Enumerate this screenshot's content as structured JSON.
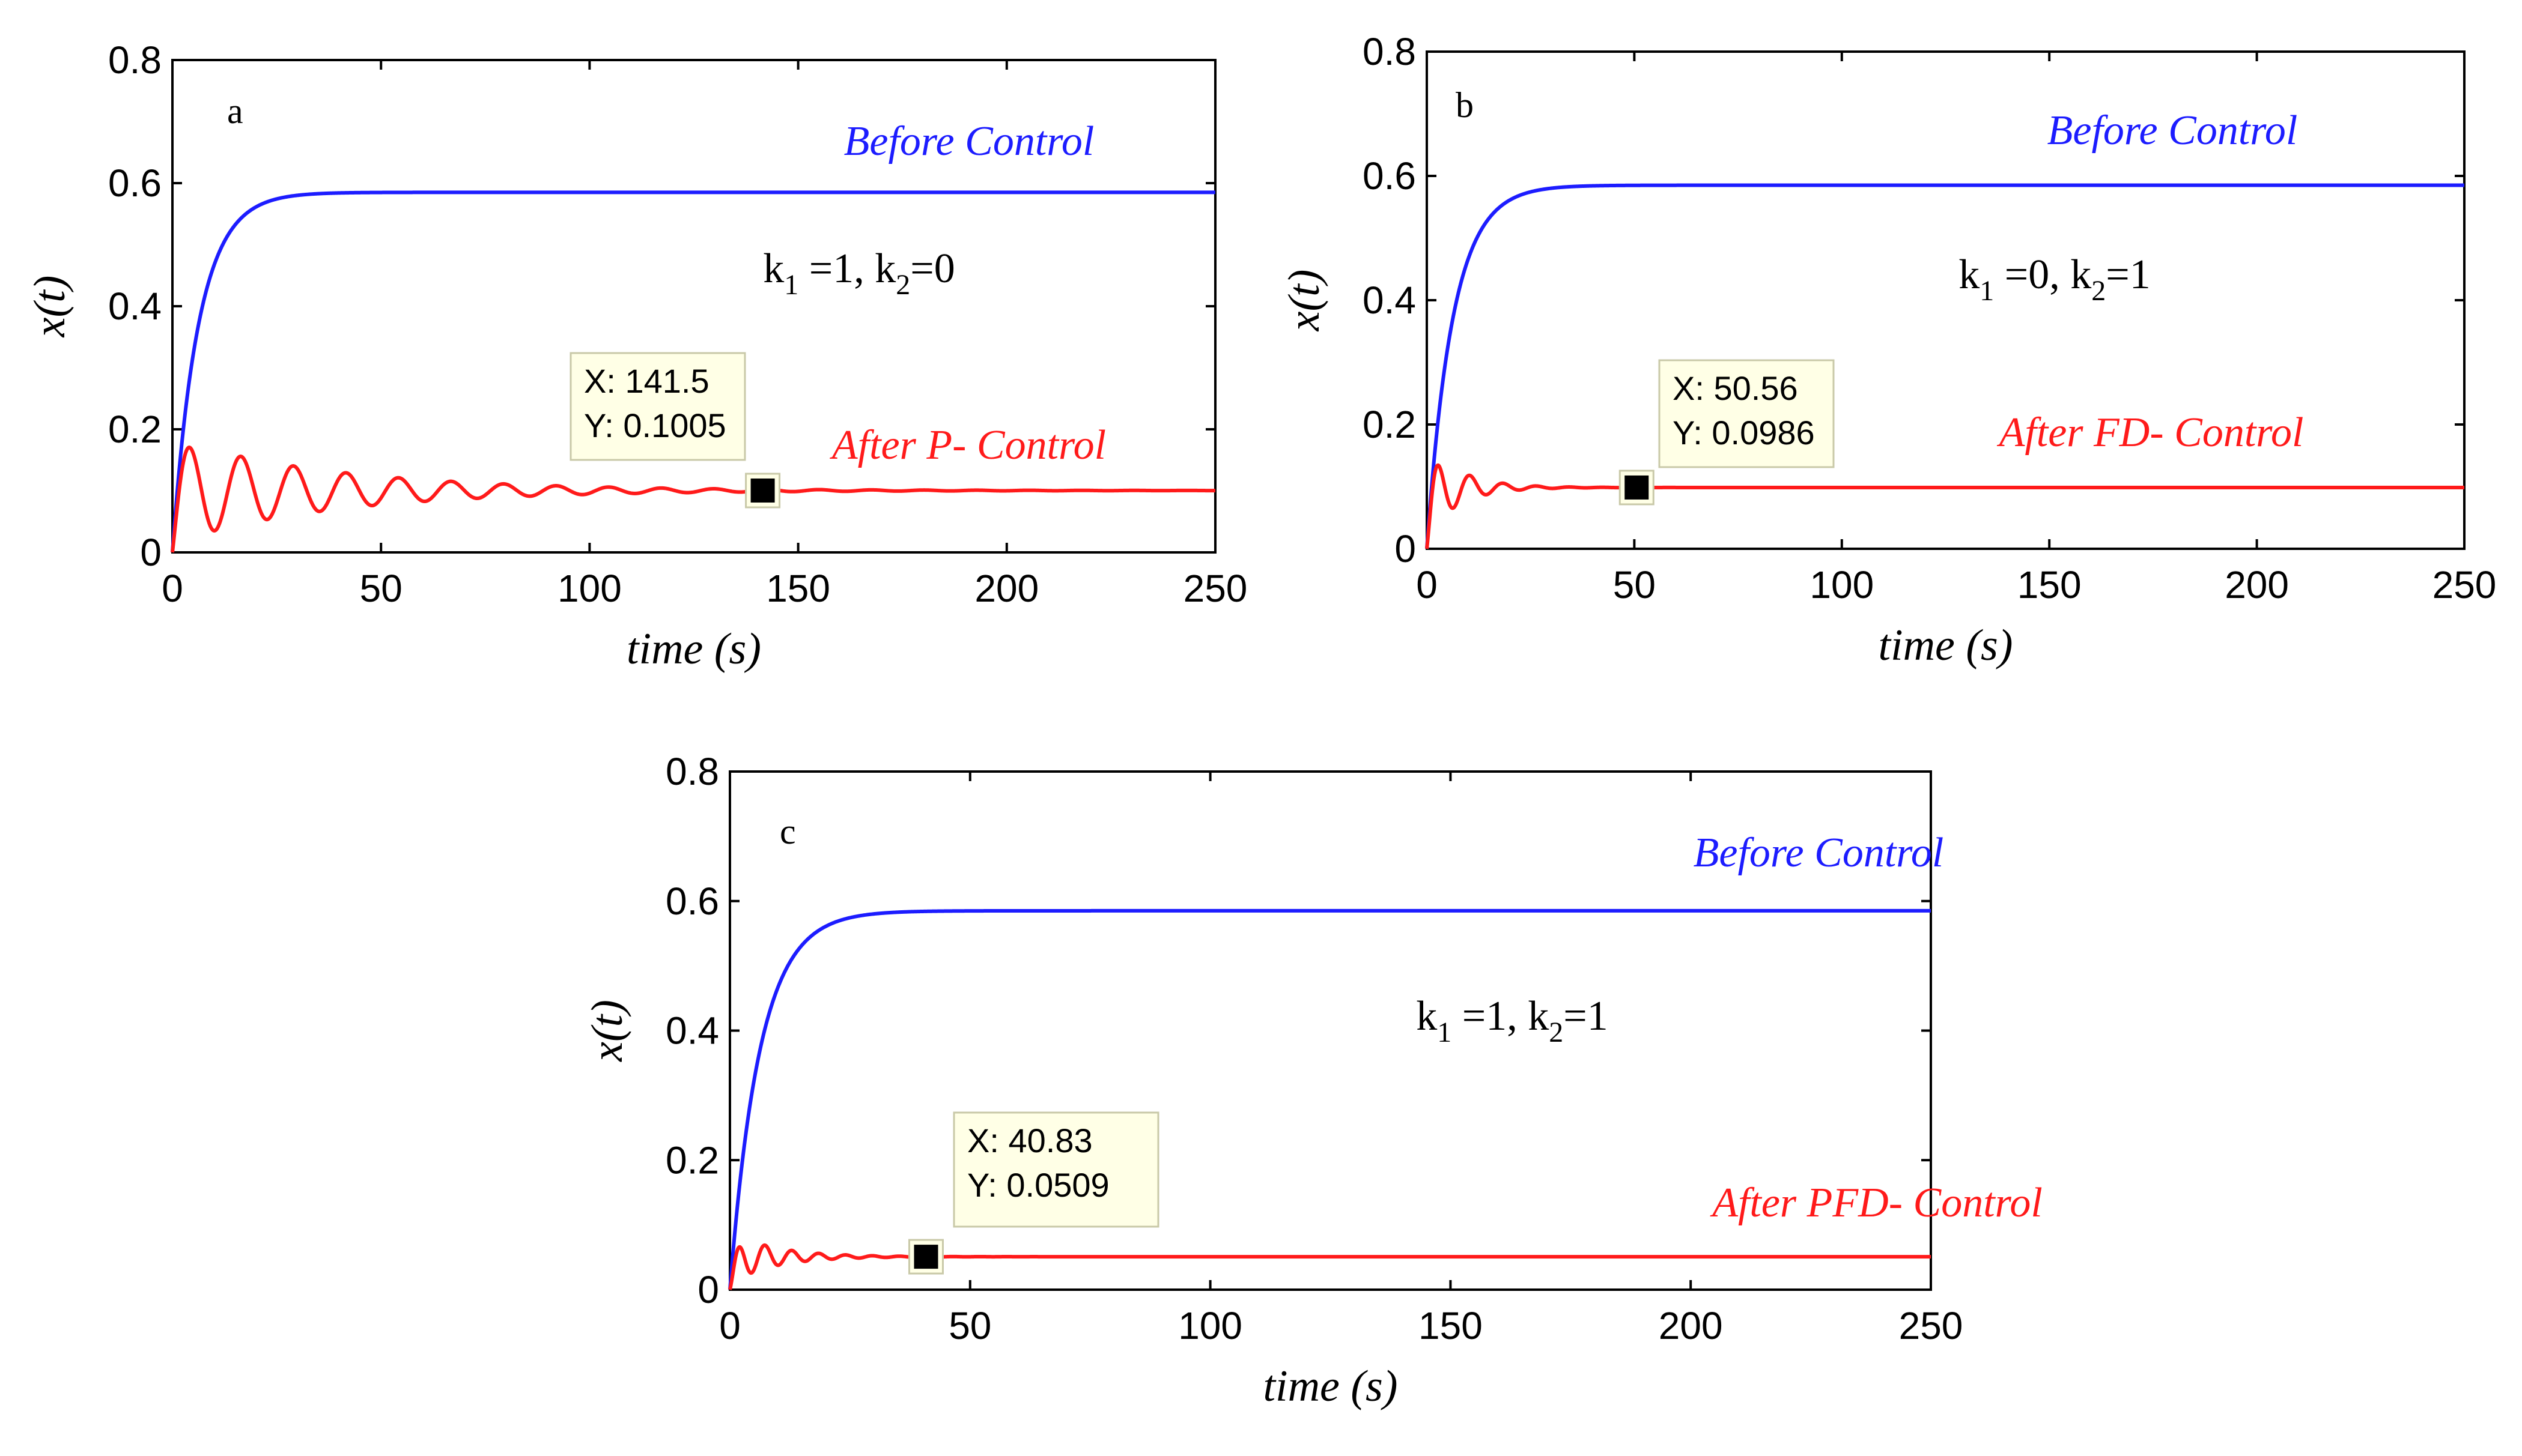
{
  "figure": {
    "background": "#ffffff"
  },
  "colors": {
    "before": "#1c1cff",
    "after": "#ff1a1a",
    "datatip_bg": "#ffffe6",
    "datatip_border": "#c9c9a8",
    "marker": "#000000"
  },
  "chart_data": [
    {
      "type": "line",
      "panel_label": "a",
      "xlabel": "time (s)",
      "ylabel": "x(t)",
      "xlim": [
        0,
        250
      ],
      "ylim": [
        0,
        0.8
      ],
      "xticks": [
        0,
        50,
        100,
        150,
        200,
        250
      ],
      "xtick_labels": [
        "0",
        "50",
        "100",
        "150",
        "200",
        "250"
      ],
      "yticks": [
        0,
        0.2,
        0.4,
        0.6,
        0.8
      ],
      "ytick_labels": [
        "0",
        "0.2",
        "0.4",
        "0.6",
        "0.8"
      ],
      "params": {
        "k1_prefix": "k",
        "k1_sub": "1",
        "k1_value": " =1, ",
        "k2_prefix": "k",
        "k2_sub": "2",
        "k2_value": "=0"
      },
      "series": [
        {
          "name": "Before Control",
          "label": "Before Control",
          "model": "rise",
          "steady": 0.585,
          "rate": 0.16
        },
        {
          "name": "After P- Control",
          "label": "After P- Control",
          "model": "damped",
          "steady": 0.1005,
          "amp": 0.085,
          "period": 12.6,
          "decay": 0.026
        }
      ],
      "datatip": {
        "x_label": "X: 141.5",
        "y_label": "Y: 0.1005",
        "x": 141.5,
        "y": 0.1005
      }
    },
    {
      "type": "line",
      "panel_label": "b",
      "xlabel": "time (s)",
      "ylabel": "x(t)",
      "xlim": [
        0,
        250
      ],
      "ylim": [
        0,
        0.8
      ],
      "xticks": [
        0,
        50,
        100,
        150,
        200,
        250
      ],
      "xtick_labels": [
        "0",
        "50",
        "100",
        "150",
        "200",
        "250"
      ],
      "yticks": [
        0,
        0.2,
        0.4,
        0.6,
        0.8
      ],
      "ytick_labels": [
        "0",
        "0.2",
        "0.4",
        "0.6",
        "0.8"
      ],
      "params": {
        "k1_prefix": "k",
        "k1_sub": "1",
        "k1_value": " =0, ",
        "k2_prefix": "k",
        "k2_sub": "2",
        "k2_value": "=1"
      },
      "series": [
        {
          "name": "Before Control",
          "label": "Before Control",
          "model": "rise",
          "steady": 0.585,
          "rate": 0.16
        },
        {
          "name": "After FD- Control",
          "label": "After FD- Control",
          "model": "damped",
          "steady": 0.0986,
          "amp": 0.075,
          "period": 8.0,
          "decay": 0.13
        }
      ],
      "datatip": {
        "x_label": "X: 50.56",
        "y_label": "Y: 0.0986",
        "x": 50.56,
        "y": 0.0986
      }
    },
    {
      "type": "line",
      "panel_label": "c",
      "xlabel": "time (s)",
      "ylabel": "x(t)",
      "xlim": [
        0,
        250
      ],
      "ylim": [
        0,
        0.8
      ],
      "xticks": [
        0,
        50,
        100,
        150,
        200,
        250
      ],
      "xtick_labels": [
        "0",
        "50",
        "100",
        "150",
        "200",
        "250"
      ],
      "yticks": [
        0,
        0.2,
        0.4,
        0.6,
        0.8
      ],
      "ytick_labels": [
        "0",
        "0.2",
        "0.4",
        "0.6",
        "0.8"
      ],
      "params": {
        "k1_prefix": "k",
        "k1_sub": "1",
        "k1_value": " =1, ",
        "k2_prefix": "k",
        "k2_sub": "2",
        "k2_value": "=1"
      },
      "series": [
        {
          "name": "Before Control",
          "label": "Before Control",
          "model": "rise",
          "steady": 0.585,
          "rate": 0.16
        },
        {
          "name": "After PFD- Control",
          "label": "After PFD- Control",
          "model": "damped",
          "steady": 0.0509,
          "amp": 0.04,
          "period": 5.6,
          "decay": 0.11
        }
      ],
      "datatip": {
        "x_label": "X: 40.83",
        "y_label": "Y: 0.0509",
        "x": 40.83,
        "y": 0.0509
      }
    }
  ]
}
